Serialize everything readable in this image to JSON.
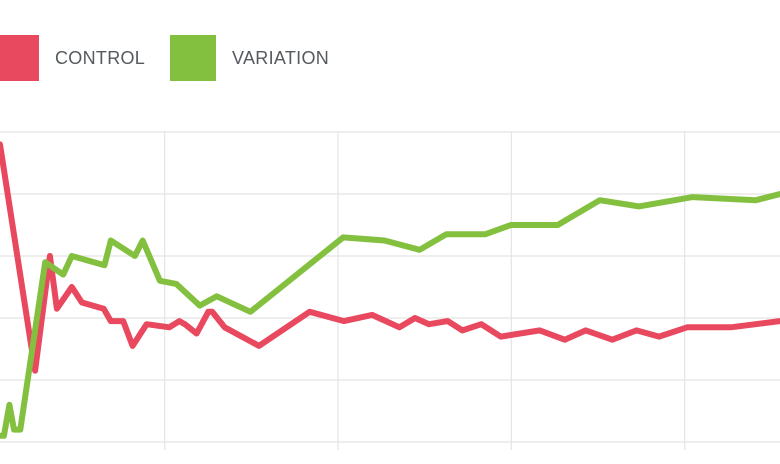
{
  "legend": {
    "items": [
      {
        "label": "CONTROL",
        "color": "#e8495f"
      },
      {
        "label": "VARIATION",
        "color": "#84c03f"
      }
    ]
  },
  "chart_data": {
    "type": "line",
    "grid": true,
    "legend_position": "top-left",
    "xlim": [
      0,
      100
    ],
    "ylim": [
      0,
      100
    ],
    "title": "",
    "xlabel": "",
    "ylabel": "",
    "series": [
      {
        "name": "CONTROL",
        "color": "#e8495f",
        "x": [
          0,
          4.5,
          6.4,
          7.3,
          9.2,
          10.5,
          13.3,
          14.2,
          15.8,
          17.0,
          18.8,
          21.7,
          23.0,
          23.7,
          25.2,
          26.7,
          27.2,
          28.8,
          33.2,
          39.7,
          44.1,
          47.7,
          51.2,
          53.2,
          55.0,
          57.4,
          59.3,
          61.7,
          64.2,
          69.2,
          72.4,
          75.1,
          78.5,
          81.6,
          84.5,
          88.1,
          93.7,
          100
        ],
        "y": [
          96,
          23,
          60,
          43,
          50,
          45,
          43,
          39,
          39,
          31,
          38,
          37,
          39,
          38,
          35,
          42,
          42,
          37,
          31,
          42,
          39,
          41,
          37,
          40,
          38,
          39,
          36,
          38,
          34,
          36,
          33,
          36,
          33,
          36,
          34,
          37,
          37,
          39
        ]
      },
      {
        "name": "VARIATION",
        "color": "#84c03f",
        "x": [
          0,
          0.5,
          1.2,
          1.8,
          2.6,
          5.8,
          8.1,
          9.2,
          13.4,
          14.2,
          17.3,
          18.3,
          20.5,
          22.6,
          25.6,
          27.8,
          32.1,
          44.0,
          49.3,
          53.8,
          57.2,
          62.2,
          65.5,
          71.5,
          76.9,
          81.9,
          88.8,
          96.9,
          100
        ],
        "y": [
          2,
          2,
          12,
          4,
          4,
          58,
          54,
          60,
          57,
          65,
          60,
          65,
          52,
          51,
          44,
          47,
          42,
          66,
          65,
          62,
          67,
          67,
          70,
          70,
          78,
          76,
          79,
          78,
          80
        ]
      }
    ]
  }
}
